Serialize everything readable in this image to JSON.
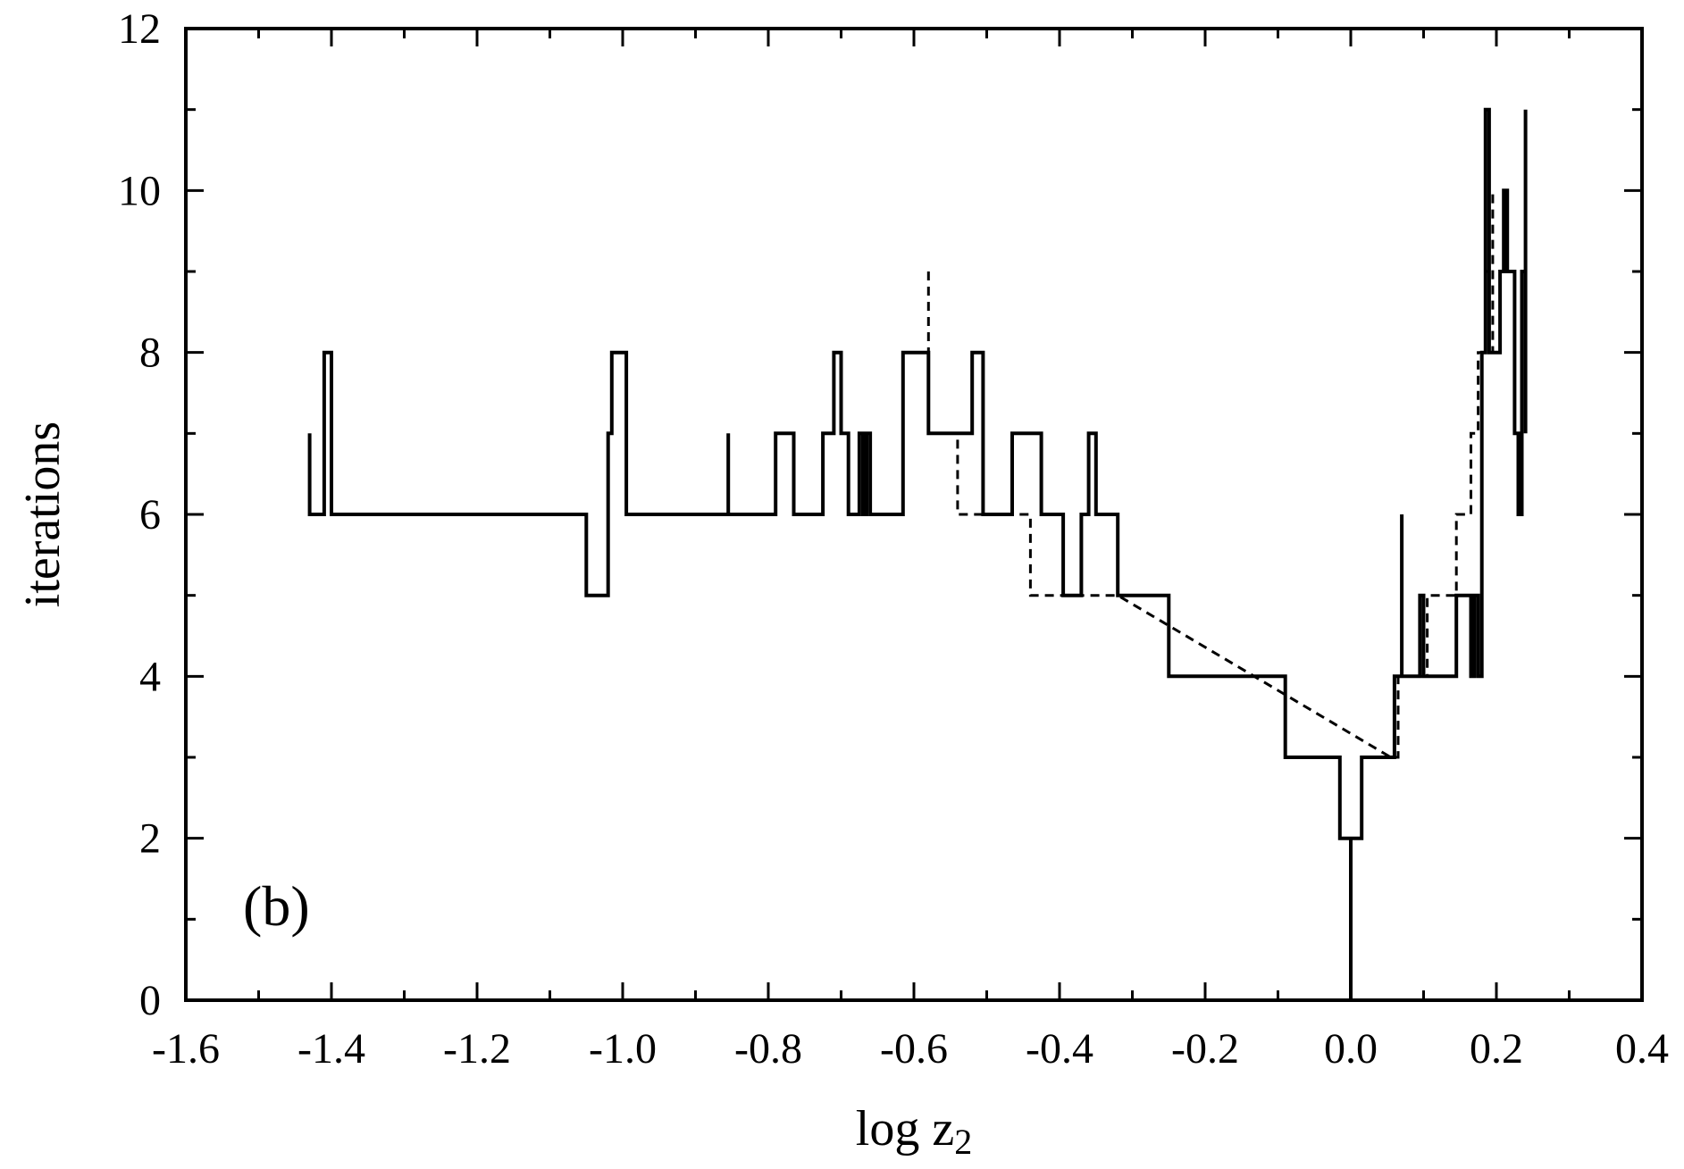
{
  "chart_data": {
    "type": "line",
    "step": true,
    "xlabel_base": "log z",
    "xlabel_sub": "2",
    "ylabel": "iterations",
    "annotation": "(b)",
    "xlim": [
      -1.6,
      0.4
    ],
    "ylim": [
      0,
      12
    ],
    "x_ticks": [
      -1.6,
      -1.4,
      -1.2,
      -1.0,
      -0.8,
      -0.6,
      -0.4,
      -0.2,
      0.0,
      0.2,
      0.4
    ],
    "x_tick_labels": [
      "-1.6",
      "-1.4",
      "-1.2",
      "-1.0",
      "-0.8",
      "-0.6",
      "-0.4",
      "-0.2",
      "0.0",
      "0.2",
      "0.4"
    ],
    "y_ticks": [
      0,
      2,
      4,
      6,
      8,
      10,
      12
    ],
    "y_tick_labels": [
      "0",
      "2",
      "4",
      "6",
      "8",
      "10",
      "12"
    ],
    "grid": false,
    "series": [
      {
        "style": "solid",
        "points": [
          [
            -1.43,
            7
          ],
          [
            -1.43,
            6
          ],
          [
            -1.41,
            6
          ],
          [
            -1.41,
            8
          ],
          [
            -1.4,
            8
          ],
          [
            -1.4,
            6
          ],
          [
            -1.05,
            6
          ],
          [
            -1.05,
            5
          ],
          [
            -1.02,
            5
          ],
          [
            -1.02,
            7
          ],
          [
            -1.015,
            7
          ],
          [
            -1.015,
            8
          ],
          [
            -0.995,
            8
          ],
          [
            -0.995,
            6
          ],
          [
            -0.855,
            6
          ],
          [
            -0.855,
            7
          ],
          [
            -0.855,
            6
          ],
          [
            -0.79,
            6
          ],
          [
            -0.79,
            7
          ],
          [
            -0.765,
            7
          ],
          [
            -0.765,
            6
          ],
          [
            -0.725,
            6
          ],
          [
            -0.725,
            7
          ],
          [
            -0.71,
            7
          ],
          [
            -0.71,
            8
          ],
          [
            -0.7,
            8
          ],
          [
            -0.7,
            7
          ],
          [
            -0.69,
            7
          ],
          [
            -0.69,
            6
          ],
          [
            -0.675,
            6
          ],
          [
            -0.675,
            7
          ],
          [
            -0.67,
            7
          ],
          [
            -0.67,
            6
          ],
          [
            -0.665,
            6
          ],
          [
            -0.665,
            7
          ],
          [
            -0.66,
            7
          ],
          [
            -0.66,
            6
          ],
          [
            -0.615,
            6
          ],
          [
            -0.615,
            8
          ],
          [
            -0.58,
            8
          ],
          [
            -0.58,
            7
          ],
          [
            -0.52,
            7
          ],
          [
            -0.52,
            8
          ],
          [
            -0.505,
            8
          ],
          [
            -0.505,
            6
          ],
          [
            -0.465,
            6
          ],
          [
            -0.465,
            7
          ],
          [
            -0.425,
            7
          ],
          [
            -0.425,
            6
          ],
          [
            -0.395,
            6
          ],
          [
            -0.395,
            5
          ],
          [
            -0.37,
            5
          ],
          [
            -0.37,
            6
          ],
          [
            -0.36,
            6
          ],
          [
            -0.36,
            7
          ],
          [
            -0.35,
            7
          ],
          [
            -0.35,
            6
          ],
          [
            -0.32,
            6
          ],
          [
            -0.32,
            5
          ],
          [
            -0.25,
            5
          ],
          [
            -0.25,
            4
          ],
          [
            -0.09,
            4
          ],
          [
            -0.09,
            3
          ],
          [
            -0.015,
            3
          ],
          [
            -0.015,
            2
          ],
          [
            0.0,
            2
          ],
          [
            0.0,
            0
          ],
          [
            0.0,
            2
          ],
          [
            0.015,
            2
          ],
          [
            0.015,
            3
          ],
          [
            0.06,
            3
          ],
          [
            0.06,
            4
          ],
          [
            0.07,
            4
          ],
          [
            0.07,
            6
          ],
          [
            0.07,
            4
          ],
          [
            0.095,
            4
          ],
          [
            0.095,
            5
          ],
          [
            0.1,
            5
          ],
          [
            0.1,
            4
          ],
          [
            0.145,
            4
          ],
          [
            0.145,
            5
          ],
          [
            0.165,
            5
          ],
          [
            0.165,
            4
          ],
          [
            0.17,
            4
          ],
          [
            0.17,
            5
          ],
          [
            0.175,
            5
          ],
          [
            0.175,
            4
          ],
          [
            0.18,
            4
          ],
          [
            0.18,
            8
          ],
          [
            0.185,
            8
          ],
          [
            0.185,
            11
          ],
          [
            0.19,
            11
          ],
          [
            0.19,
            8
          ],
          [
            0.205,
            8
          ],
          [
            0.205,
            9
          ],
          [
            0.21,
            9
          ],
          [
            0.21,
            10
          ],
          [
            0.215,
            10
          ],
          [
            0.215,
            9
          ],
          [
            0.225,
            9
          ],
          [
            0.225,
            7
          ],
          [
            0.23,
            7
          ],
          [
            0.23,
            6
          ],
          [
            0.235,
            6
          ],
          [
            0.235,
            9
          ],
          [
            0.24,
            9
          ],
          [
            0.24,
            11
          ],
          [
            0.24,
            7
          ]
        ]
      },
      {
        "style": "dashed",
        "points": [
          [
            -0.58,
            9
          ],
          [
            -0.58,
            7
          ],
          [
            -0.54,
            7
          ],
          [
            -0.54,
            6
          ],
          [
            -0.505,
            6
          ],
          [
            -0.44,
            6
          ],
          [
            -0.44,
            5
          ],
          [
            -0.395,
            5
          ],
          [
            -0.32,
            5
          ],
          [
            0.055,
            3
          ],
          [
            0.065,
            3
          ],
          [
            0.065,
            4
          ],
          [
            0.105,
            4
          ],
          [
            0.105,
            5
          ],
          [
            0.145,
            5
          ],
          [
            0.145,
            6
          ],
          [
            0.165,
            6
          ],
          [
            0.165,
            7
          ],
          [
            0.175,
            7
          ],
          [
            0.175,
            8
          ],
          [
            0.185,
            8
          ],
          [
            0.185,
            9
          ],
          [
            0.19,
            9
          ],
          [
            0.19,
            10
          ],
          [
            0.195,
            10
          ],
          [
            0.195,
            8
          ]
        ]
      }
    ]
  }
}
